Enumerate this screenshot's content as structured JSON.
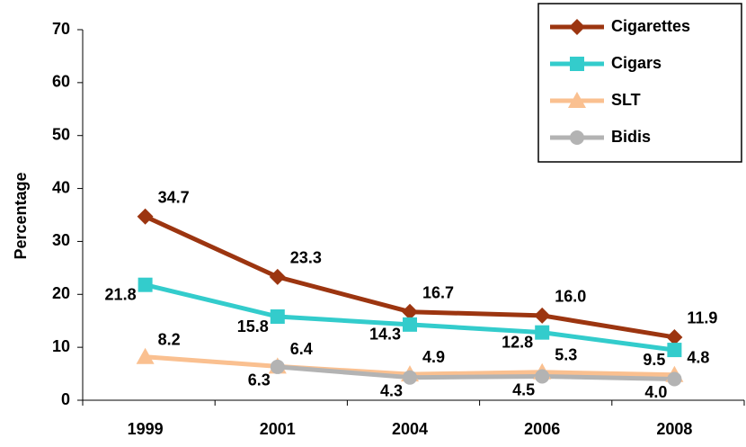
{
  "chart_data": {
    "type": "line",
    "y_label": "Percentage",
    "categories": [
      "1999",
      "2001",
      "2004",
      "2006",
      "2008"
    ],
    "series": [
      {
        "name": "Cigarettes",
        "color": "#9c3510",
        "marker": "diamond",
        "values": [
          34.7,
          23.3,
          16.7,
          16.0,
          11.9
        ],
        "value_labels": [
          "34.7",
          "23.3",
          "16.7",
          "16.0",
          "11.9"
        ]
      },
      {
        "name": "Cigars",
        "color": "#33cccc",
        "marker": "square",
        "values": [
          21.8,
          15.8,
          14.3,
          12.8,
          9.5
        ],
        "value_labels": [
          "21.8",
          "15.8",
          "14.3",
          "12.8",
          "9.5"
        ]
      },
      {
        "name": "SLT",
        "color": "#fac090",
        "marker": "triangle",
        "values": [
          8.2,
          6.4,
          4.9,
          5.3,
          4.8
        ],
        "value_labels": [
          "8.2",
          "6.4",
          "4.9",
          "5.3",
          "4.8"
        ]
      },
      {
        "name": "Bidis",
        "color": "#b3b3b3",
        "marker": "circle",
        "values": [
          null,
          6.3,
          4.3,
          4.5,
          4.0
        ],
        "value_labels": [
          null,
          "6.3",
          "4.3",
          "4.5",
          "4.0"
        ]
      }
    ],
    "ylim": [
      0,
      70
    ],
    "yticks": [
      0,
      10,
      20,
      30,
      40,
      50,
      60,
      70
    ],
    "grid": false,
    "legend": "upper right"
  }
}
